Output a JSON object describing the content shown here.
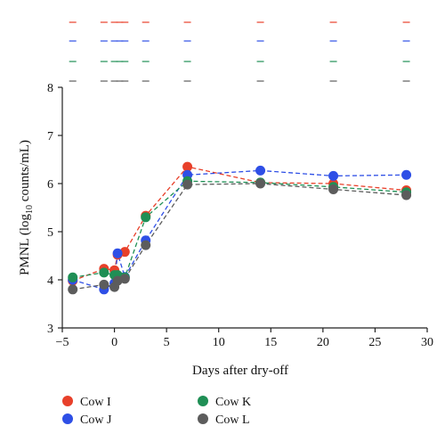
{
  "colors": {
    "Cow I": "#e8402a",
    "Cow J": "#2e4fe6",
    "Cow K": "#1f8f55",
    "Cow L": "#5c5c5c"
  },
  "chart_data": {
    "type": "scatter",
    "xlabel": "Days after dry-off",
    "ylabel_parts": [
      "PMNL (log",
      "10",
      " counts/mL)"
    ],
    "xlim": [
      -5,
      30
    ],
    "ylim": [
      3,
      8
    ],
    "xticks": [
      -5,
      0,
      5,
      10,
      15,
      20,
      25,
      30
    ],
    "yticks": [
      3,
      4,
      5,
      6,
      7,
      8
    ],
    "grid": false,
    "legend_position": "bottom",
    "significance_days": [
      -4,
      -1,
      0,
      0.5,
      1,
      3,
      7,
      14,
      21,
      28
    ],
    "series": [
      {
        "name": "Cow I",
        "x": [
          -4,
          -1,
          0,
          0.3,
          1,
          3,
          7,
          14,
          21,
          28
        ],
        "y": [
          3.98,
          4.23,
          4.2,
          4.52,
          4.58,
          5.33,
          6.35,
          6.02,
          6.0,
          5.86
        ]
      },
      {
        "name": "Cow J",
        "x": [
          -4,
          -1,
          0,
          0.3,
          1,
          3,
          7,
          14,
          21,
          28
        ],
        "y": [
          4.0,
          3.8,
          3.93,
          4.55,
          4.06,
          4.82,
          6.18,
          6.27,
          6.16,
          6.18
        ]
      },
      {
        "name": "Cow K",
        "x": [
          -4,
          -1,
          0,
          0.3,
          1,
          3,
          7,
          14,
          21,
          28
        ],
        "y": [
          4.05,
          4.15,
          4.1,
          4.1,
          4.05,
          5.3,
          6.05,
          6.02,
          5.93,
          5.82
        ]
      },
      {
        "name": "Cow L",
        "x": [
          -4,
          -1,
          0,
          0.3,
          1,
          3,
          7,
          14,
          21,
          28
        ],
        "y": [
          3.8,
          3.9,
          3.85,
          3.98,
          4.02,
          4.72,
          5.98,
          6.0,
          5.88,
          5.76
        ]
      }
    ]
  }
}
